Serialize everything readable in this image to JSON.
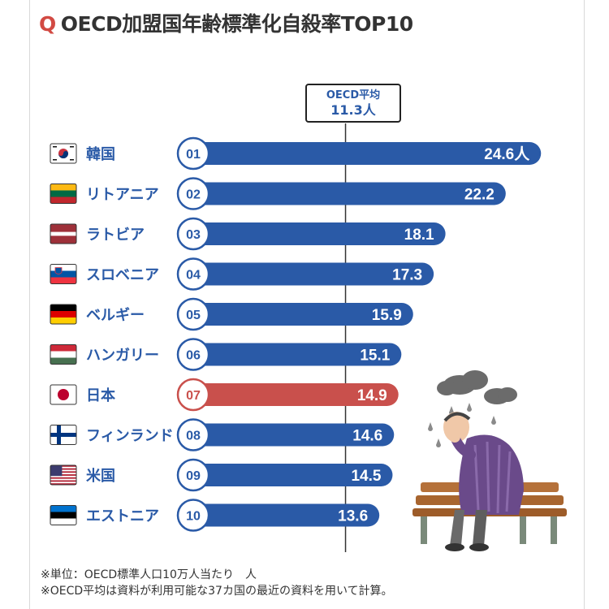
{
  "title": {
    "q": "Q",
    "text": "OECD加盟国年齢標準化自殺率TOP10"
  },
  "average": {
    "label": "OECD平均",
    "value_text": "11.3人",
    "value": 11.3
  },
  "footnotes": [
    "※単位：OECD標準人口10万人当たり　人",
    "※OECD平均は資料が利用可能な37カ国の最近の資料を用いて計算。"
  ],
  "colors": {
    "bar": "#2a5aa7",
    "highlight": "#c9504c",
    "rank_border": "#2a5aa7",
    "highlight_border": "#c9504c"
  },
  "chart_data": {
    "type": "bar",
    "orientation": "horizontal",
    "unit": "人",
    "reference_line": {
      "label": "OECD平均",
      "value": 11.3
    },
    "rows": [
      {
        "rank": "01",
        "country": "韓国",
        "value": 24.6,
        "label": "24.6人",
        "flag": "korea-flag-icon",
        "highlight": false
      },
      {
        "rank": "02",
        "country": "リトアニア",
        "value": 22.2,
        "label": "22.2",
        "flag": "lithuania-flag-icon",
        "highlight": false
      },
      {
        "rank": "03",
        "country": "ラトビア",
        "value": 18.1,
        "label": "18.1",
        "flag": "latvia-flag-icon",
        "highlight": false
      },
      {
        "rank": "04",
        "country": "スロベニア",
        "value": 17.3,
        "label": "17.3",
        "flag": "slovenia-flag-icon",
        "highlight": false
      },
      {
        "rank": "05",
        "country": "ベルギー",
        "value": 15.9,
        "label": "15.9",
        "flag": "belgium-flag-icon",
        "highlight": false
      },
      {
        "rank": "06",
        "country": "ハンガリー",
        "value": 15.1,
        "label": "15.1",
        "flag": "hungary-flag-icon",
        "highlight": false
      },
      {
        "rank": "07",
        "country": "日本",
        "value": 14.9,
        "label": "14.9",
        "flag": "japan-flag-icon",
        "highlight": true
      },
      {
        "rank": "08",
        "country": "フィンランド",
        "value": 14.6,
        "label": "14.6",
        "flag": "finland-flag-icon",
        "highlight": false
      },
      {
        "rank": "09",
        "country": "米国",
        "value": 14.5,
        "label": "14.5",
        "flag": "usa-flag-icon",
        "highlight": false
      },
      {
        "rank": "10",
        "country": "エストニア",
        "value": 13.6,
        "label": "13.6",
        "flag": "estonia-flag-icon",
        "highlight": false
      }
    ]
  }
}
